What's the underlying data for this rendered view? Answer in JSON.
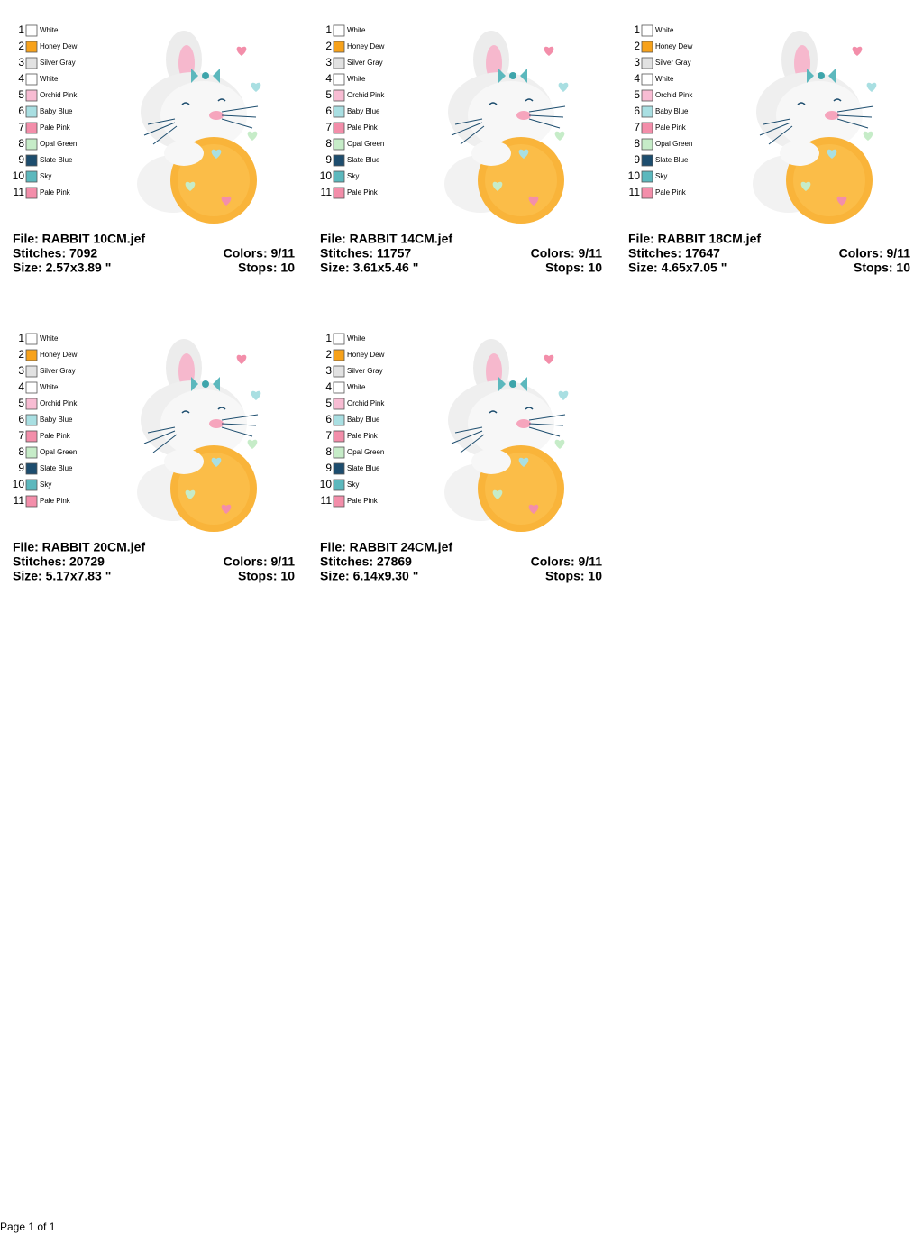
{
  "designs": [
    {
      "file": "File: RABBIT 10CM.jef",
      "stitches": "Stitches: 7092",
      "size": "Size: 2.57x3.89 \"",
      "colors": "Colors: 9/11",
      "stops": "Stops: 10",
      "threads": [
        {
          "number": 1,
          "name": "White",
          "color": "#ffffff"
        },
        {
          "number": 2,
          "name": "Honey Dew",
          "color": "#f7a21b"
        },
        {
          "number": 3,
          "name": "Silver Gray",
          "color": "#e2e2e2"
        },
        {
          "number": 4,
          "name": "White",
          "color": "#ffffff"
        },
        {
          "number": 5,
          "name": "Orchid Pink",
          "color": "#f8bcd3"
        },
        {
          "number": 6,
          "name": "Baby Blue",
          "color": "#a9dfe2"
        },
        {
          "number": 7,
          "name": "Pale Pink",
          "color": "#f38eaa"
        },
        {
          "number": 8,
          "name": "Opal Green",
          "color": "#c6ecc8"
        },
        {
          "number": 9,
          "name": "Slate Blue",
          "color": "#1d4d6e"
        },
        {
          "number": 10,
          "name": "Sky",
          "color": "#5cb8bd"
        },
        {
          "number": 11,
          "name": "Pale Pink",
          "color": "#f38eaa"
        }
      ]
    },
    {
      "file": "File: RABBIT 14CM.jef",
      "stitches": "Stitches: 11757",
      "size": "Size: 3.61x5.46 \"",
      "colors": "Colors: 9/11",
      "stops": "Stops: 10",
      "threads": [
        {
          "number": 1,
          "name": "White",
          "color": "#ffffff"
        },
        {
          "number": 2,
          "name": "Honey Dew",
          "color": "#f7a21b"
        },
        {
          "number": 3,
          "name": "Silver Gray",
          "color": "#e2e2e2"
        },
        {
          "number": 4,
          "name": "White",
          "color": "#ffffff"
        },
        {
          "number": 5,
          "name": "Orchid Pink",
          "color": "#f8bcd3"
        },
        {
          "number": 6,
          "name": "Baby Blue",
          "color": "#a9dfe2"
        },
        {
          "number": 7,
          "name": "Pale Pink",
          "color": "#f38eaa"
        },
        {
          "number": 8,
          "name": "Opal Green",
          "color": "#c6ecc8"
        },
        {
          "number": 9,
          "name": "Slate Blue",
          "color": "#1d4d6e"
        },
        {
          "number": 10,
          "name": "Sky",
          "color": "#5cb8bd"
        },
        {
          "number": 11,
          "name": "Pale Pink",
          "color": "#f38eaa"
        }
      ]
    },
    {
      "file": "File: RABBIT 18CM.jef",
      "stitches": "Stitches: 17647",
      "size": "Size: 4.65x7.05 \"",
      "colors": "Colors: 9/11",
      "stops": "Stops: 10",
      "threads": [
        {
          "number": 1,
          "name": "White",
          "color": "#ffffff"
        },
        {
          "number": 2,
          "name": "Honey Dew",
          "color": "#f7a21b"
        },
        {
          "number": 3,
          "name": "Silver Gray",
          "color": "#e2e2e2"
        },
        {
          "number": 4,
          "name": "White",
          "color": "#ffffff"
        },
        {
          "number": 5,
          "name": "Orchid Pink",
          "color": "#f8bcd3"
        },
        {
          "number": 6,
          "name": "Baby Blue",
          "color": "#a9dfe2"
        },
        {
          "number": 7,
          "name": "Pale Pink",
          "color": "#f38eaa"
        },
        {
          "number": 8,
          "name": "Opal Green",
          "color": "#c6ecc8"
        },
        {
          "number": 9,
          "name": "Slate Blue",
          "color": "#1d4d6e"
        },
        {
          "number": 10,
          "name": "Sky",
          "color": "#5cb8bd"
        },
        {
          "number": 11,
          "name": "Pale Pink",
          "color": "#f38eaa"
        }
      ]
    },
    {
      "file": "File: RABBIT 20CM.jef",
      "stitches": "Stitches: 20729",
      "size": "Size: 5.17x7.83 \"",
      "colors": "Colors: 9/11",
      "stops": "Stops: 10",
      "threads": [
        {
          "number": 1,
          "name": "White",
          "color": "#ffffff"
        },
        {
          "number": 2,
          "name": "Honey Dew",
          "color": "#f7a21b"
        },
        {
          "number": 3,
          "name": "Silver Gray",
          "color": "#e2e2e2"
        },
        {
          "number": 4,
          "name": "White",
          "color": "#ffffff"
        },
        {
          "number": 5,
          "name": "Orchid Pink",
          "color": "#f8bcd3"
        },
        {
          "number": 6,
          "name": "Baby Blue",
          "color": "#a9dfe2"
        },
        {
          "number": 7,
          "name": "Pale Pink",
          "color": "#f38eaa"
        },
        {
          "number": 8,
          "name": "Opal Green",
          "color": "#c6ecc8"
        },
        {
          "number": 9,
          "name": "Slate Blue",
          "color": "#1d4d6e"
        },
        {
          "number": 10,
          "name": "Sky",
          "color": "#5cb8bd"
        },
        {
          "number": 11,
          "name": "Pale Pink",
          "color": "#f38eaa"
        }
      ]
    },
    {
      "file": "File: RABBIT 24CM.jef",
      "stitches": "Stitches: 27869",
      "size": "Size: 6.14x9.30 \"",
      "colors": "Colors: 9/11",
      "stops": "Stops: 10",
      "threads": [
        {
          "number": 1,
          "name": "White",
          "color": "#ffffff"
        },
        {
          "number": 2,
          "name": "Honey Dew",
          "color": "#f7a21b"
        },
        {
          "number": 3,
          "name": "Silver Gray",
          "color": "#e2e2e2"
        },
        {
          "number": 4,
          "name": "White",
          "color": "#ffffff"
        },
        {
          "number": 5,
          "name": "Orchid Pink",
          "color": "#f8bcd3"
        },
        {
          "number": 6,
          "name": "Baby Blue",
          "color": "#a9dfe2"
        },
        {
          "number": 7,
          "name": "Pale Pink",
          "color": "#f38eaa"
        },
        {
          "number": 8,
          "name": "Opal Green",
          "color": "#c6ecc8"
        },
        {
          "number": 9,
          "name": "Slate Blue",
          "color": "#1d4d6e"
        },
        {
          "number": 10,
          "name": "Sky",
          "color": "#5cb8bd"
        },
        {
          "number": 11,
          "name": "Pale Pink",
          "color": "#f38eaa"
        }
      ]
    }
  ],
  "footer": {
    "page": "Page 1 of 1"
  }
}
